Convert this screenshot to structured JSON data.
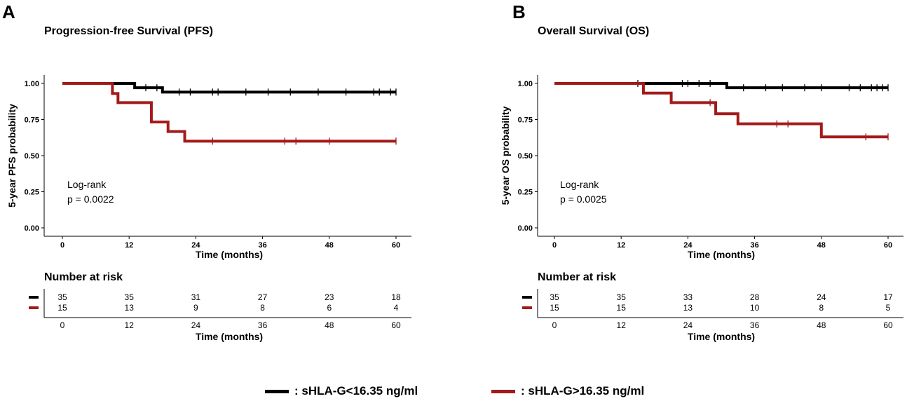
{
  "panels": [
    {
      "letter": "A",
      "title": "Progression-free Survival (PFS)",
      "ylabel": "5-year PFS probability",
      "xlabel": "Time (months)",
      "logrank_label": "Log-rank",
      "pvalue": "p = 0.0022",
      "risk_title": "Number at risk",
      "risk_xlabel": "Time (months)"
    },
    {
      "letter": "B",
      "title": "Overall Survival (OS)",
      "ylabel": "5-year OS probability",
      "xlabel": "Time (months)",
      "logrank_label": "Log-rank",
      "pvalue": "p = 0.0025",
      "risk_title": "Number at risk",
      "risk_xlabel": "Time (months)"
    }
  ],
  "legend": [
    {
      "label": ": sHLA-G<16.35 ng/ml",
      "color": "#000000"
    },
    {
      "label": ": sHLA-G>16.35 ng/ml",
      "color": "#a31a1a"
    }
  ],
  "chart_data": [
    {
      "type": "line",
      "subtype": "kaplan-meier step",
      "title": "Progression-free Survival (PFS)",
      "xlabel": "Time (months)",
      "ylabel": "5-year PFS probability",
      "xlim": [
        0,
        60
      ],
      "ylim": [
        0,
        1
      ],
      "xticks": [
        0,
        12,
        24,
        36,
        48,
        60
      ],
      "yticks": [
        "0.00",
        "0.25",
        "0.50",
        "0.75",
        "1.00"
      ],
      "series": [
        {
          "name": "sHLA-G<16.35 ng/ml",
          "color": "#000000",
          "steps": [
            [
              0,
              1.0
            ],
            [
              13,
              0.97
            ],
            [
              18,
              0.94
            ],
            [
              60,
              0.94
            ]
          ],
          "censored": [
            [
              15,
              0.97
            ],
            [
              17,
              0.97
            ],
            [
              21,
              0.94
            ],
            [
              23,
              0.94
            ],
            [
              27,
              0.94
            ],
            [
              28,
              0.94
            ],
            [
              33,
              0.94
            ],
            [
              37,
              0.94
            ],
            [
              41,
              0.94
            ],
            [
              46,
              0.94
            ],
            [
              51,
              0.94
            ],
            [
              56,
              0.94
            ],
            [
              57,
              0.94
            ],
            [
              59,
              0.94
            ],
            [
              60,
              0.94
            ]
          ]
        },
        {
          "name": "sHLA-G>16.35 ng/ml",
          "color": "#a31a1a",
          "steps": [
            [
              0,
              1.0
            ],
            [
              9,
              0.93
            ],
            [
              10,
              0.867
            ],
            [
              16,
              0.733
            ],
            [
              19,
              0.667
            ],
            [
              22,
              0.6
            ],
            [
              60,
              0.6
            ]
          ],
          "censored": [
            [
              27,
              0.6
            ],
            [
              40,
              0.6
            ],
            [
              42,
              0.6
            ],
            [
              48,
              0.6
            ],
            [
              60,
              0.6
            ]
          ]
        }
      ],
      "risk_table": {
        "times": [
          0,
          12,
          24,
          36,
          48,
          60
        ],
        "rows": [
          {
            "color": "#000000",
            "values": [
              35,
              35,
              31,
              27,
              23,
              18
            ]
          },
          {
            "color": "#a31a1a",
            "values": [
              15,
              13,
              9,
              8,
              6,
              4
            ]
          }
        ]
      }
    },
    {
      "type": "line",
      "subtype": "kaplan-meier step",
      "title": "Overall Survival (OS)",
      "xlabel": "Time (months)",
      "ylabel": "5-year OS probability",
      "xlim": [
        0,
        60
      ],
      "ylim": [
        0,
        1
      ],
      "xticks": [
        0,
        12,
        24,
        36,
        48,
        60
      ],
      "yticks": [
        "0.00",
        "0.25",
        "0.50",
        "0.75",
        "1.00"
      ],
      "series": [
        {
          "name": "sHLA-G<16.35 ng/ml",
          "color": "#000000",
          "steps": [
            [
              0,
              1.0
            ],
            [
              31,
              0.97
            ],
            [
              60,
              0.97
            ]
          ],
          "censored": [
            [
              15,
              1.0
            ],
            [
              23,
              1.0
            ],
            [
              24,
              1.0
            ],
            [
              26,
              1.0
            ],
            [
              28,
              1.0
            ],
            [
              34,
              0.97
            ],
            [
              38,
              0.97
            ],
            [
              41,
              0.97
            ],
            [
              45,
              0.97
            ],
            [
              48,
              0.97
            ],
            [
              53,
              0.97
            ],
            [
              55,
              0.97
            ],
            [
              57,
              0.97
            ],
            [
              58,
              0.97
            ],
            [
              59,
              0.97
            ],
            [
              60,
              0.97
            ]
          ]
        },
        {
          "name": "sHLA-G>16.35 ng/ml",
          "color": "#a31a1a",
          "steps": [
            [
              0,
              1.0
            ],
            [
              16,
              0.933
            ],
            [
              21,
              0.867
            ],
            [
              29,
              0.79
            ],
            [
              33,
              0.72
            ],
            [
              48,
              0.63
            ],
            [
              60,
              0.63
            ]
          ],
          "censored": [
            [
              28,
              0.867
            ],
            [
              40,
              0.72
            ],
            [
              42,
              0.72
            ],
            [
              56,
              0.63
            ],
            [
              60,
              0.63
            ]
          ]
        }
      ],
      "risk_table": {
        "times": [
          0,
          12,
          24,
          36,
          48,
          60
        ],
        "rows": [
          {
            "color": "#000000",
            "values": [
              35,
              35,
              33,
              28,
              24,
              17
            ]
          },
          {
            "color": "#a31a1a",
            "values": [
              15,
              15,
              13,
              10,
              8,
              5
            ]
          }
        ]
      }
    }
  ]
}
